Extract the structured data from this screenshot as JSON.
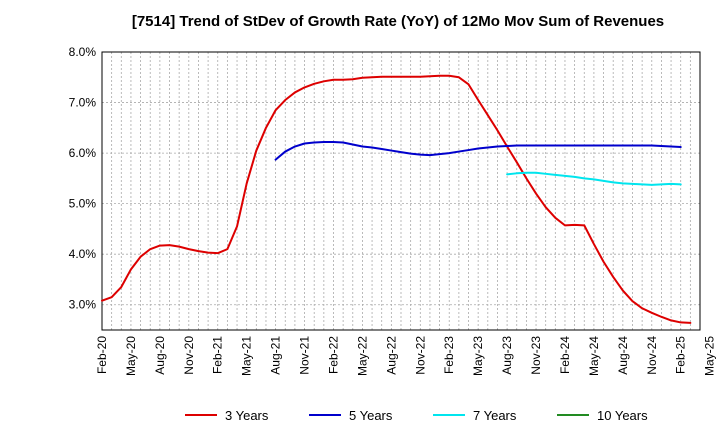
{
  "chart_data": {
    "type": "line",
    "title": "[7514]  Trend of StDev of Growth Rate (YoY) of 12Mo Mov Sum of Revenues",
    "xlabel": "",
    "ylabel": "",
    "ylim": [
      2.5,
      8.0
    ],
    "yticks": [
      3.0,
      4.0,
      5.0,
      6.0,
      7.0,
      8.0
    ],
    "ytick_labels": [
      "3.0%",
      "4.0%",
      "5.0%",
      "6.0%",
      "7.0%",
      "8.0%"
    ],
    "x_start": "Feb-20",
    "x_month_count": 63,
    "xtick_labels": [
      "Feb-20",
      "May-20",
      "Aug-20",
      "Nov-20",
      "Feb-21",
      "May-21",
      "Aug-21",
      "Nov-21",
      "Feb-22",
      "May-22",
      "Aug-22",
      "Nov-22",
      "Feb-23",
      "May-23",
      "Aug-23",
      "Nov-23",
      "Feb-24",
      "May-24",
      "Aug-24",
      "Nov-24",
      "Feb-25",
      "May-25"
    ],
    "legend_position": "bottom",
    "grid": true,
    "series": [
      {
        "name": "3 Years",
        "color": "#dd0000",
        "start_index": 0,
        "values": [
          3.08,
          3.15,
          3.35,
          3.7,
          3.95,
          4.1,
          4.17,
          4.18,
          4.15,
          4.1,
          4.06,
          4.03,
          4.02,
          4.1,
          4.55,
          5.4,
          6.05,
          6.5,
          6.85,
          7.05,
          7.2,
          7.3,
          7.37,
          7.42,
          7.45,
          7.45,
          7.46,
          7.49,
          7.5,
          7.51,
          7.51,
          7.51,
          7.51,
          7.51,
          7.52,
          7.53,
          7.53,
          7.5,
          7.36,
          7.05,
          6.75,
          6.45,
          6.13,
          5.82,
          5.5,
          5.2,
          4.93,
          4.72,
          4.57,
          4.58,
          4.57,
          4.2,
          3.85,
          3.55,
          3.28,
          3.07,
          2.93,
          2.84,
          2.76,
          2.69,
          2.65,
          2.64
        ]
      },
      {
        "name": "5 Years",
        "color": "#0000cc",
        "start_index": 18,
        "values": [
          5.87,
          6.03,
          6.13,
          6.19,
          6.21,
          6.22,
          6.22,
          6.21,
          6.17,
          6.13,
          6.11,
          6.08,
          6.05,
          6.02,
          5.99,
          5.97,
          5.96,
          5.98,
          6.0,
          6.03,
          6.06,
          6.09,
          6.11,
          6.13,
          6.14,
          6.15,
          6.15,
          6.15,
          6.15,
          6.15,
          6.15,
          6.15,
          6.15,
          6.15,
          6.15,
          6.15,
          6.15,
          6.15,
          6.15,
          6.15,
          6.14,
          6.13,
          6.12
        ]
      },
      {
        "name": "7 Years",
        "color": "#00e5ee",
        "start_index": 42,
        "values": [
          5.58,
          5.6,
          5.61,
          5.61,
          5.59,
          5.57,
          5.55,
          5.53,
          5.5,
          5.48,
          5.45,
          5.42,
          5.4,
          5.39,
          5.38,
          5.37,
          5.38,
          5.39,
          5.38
        ]
      },
      {
        "name": "10 Years",
        "color": "#228b22",
        "start_index": 0,
        "values": []
      }
    ]
  }
}
